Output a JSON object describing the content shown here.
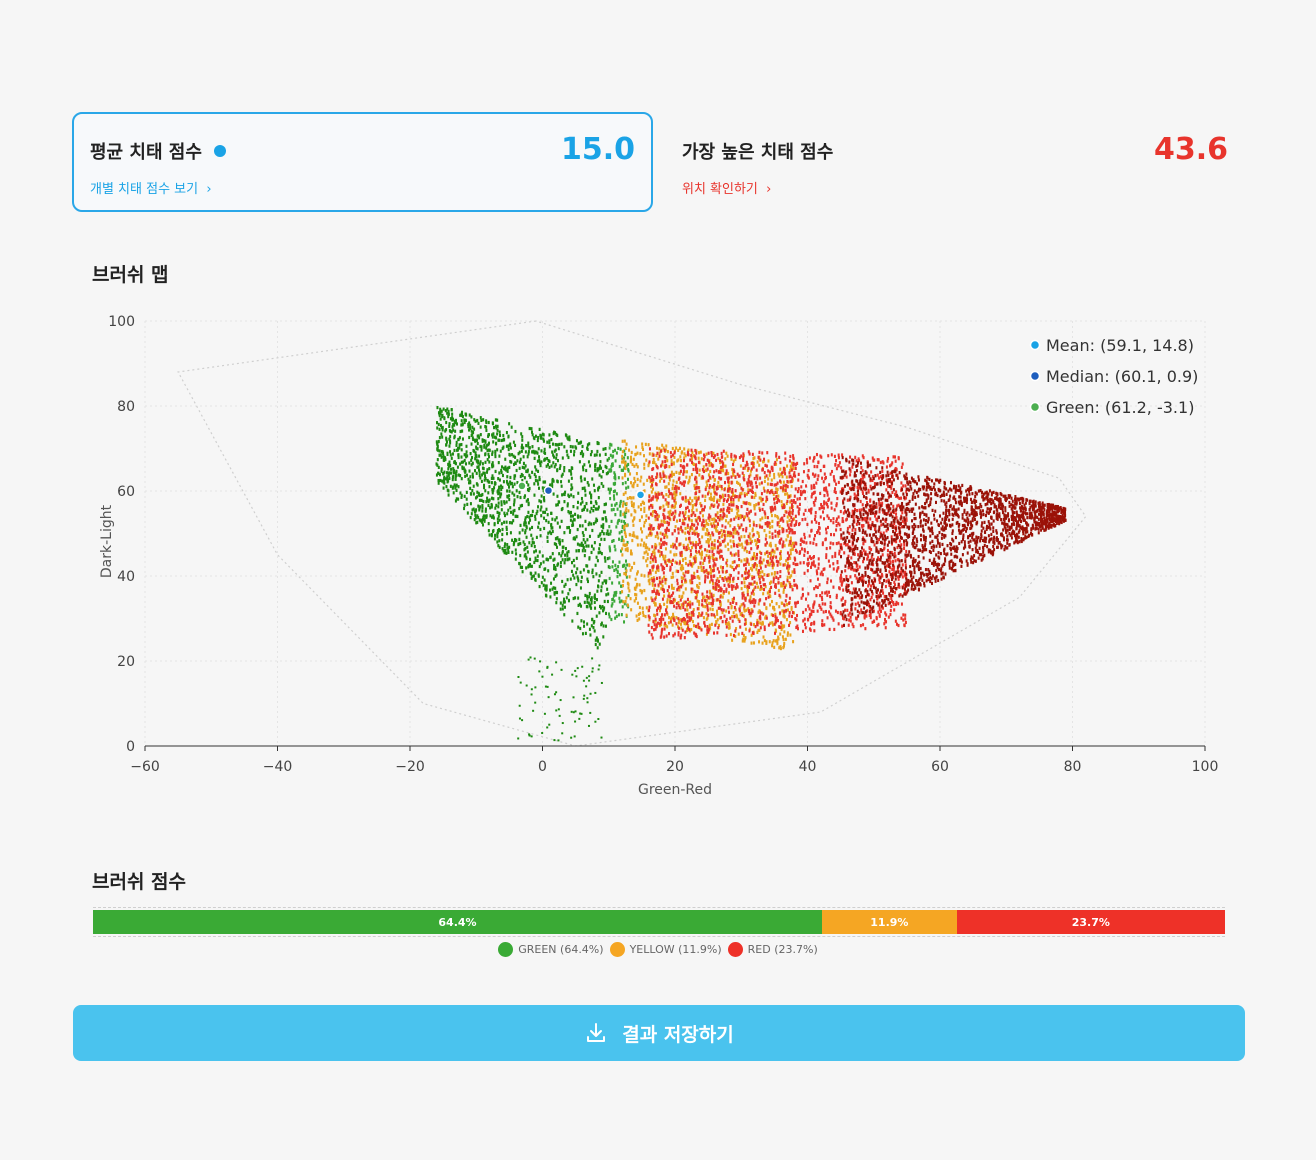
{
  "avg_card": {
    "title": "평균 치태 점수",
    "link": "개별 치태 점수 보기",
    "value": "15.0"
  },
  "max_card": {
    "title": "가장 높은 치태 점수",
    "link": "위치 확인하기",
    "value": "43.6"
  },
  "brush_map": {
    "title": "브러쉬 맵"
  },
  "chart_data": {
    "type": "scatter",
    "xlabel": "Green-Red",
    "ylabel": "Dark-Light",
    "xlim": [
      -60,
      100
    ],
    "ylim": [
      0,
      100
    ],
    "xticks": [
      "−60",
      "−40",
      "−20",
      "0",
      "20",
      "40",
      "60",
      "80",
      "100"
    ],
    "yticks": [
      "0",
      "20",
      "40",
      "60",
      "80",
      "100"
    ],
    "grid": true,
    "legend_position": "top-right",
    "markers": [
      {
        "label": "Mean: (59.1, 14.8)",
        "x": 14.8,
        "y": 59.1,
        "color": "#1aa3e6"
      },
      {
        "label": "Median: (60.1, 0.9)",
        "x": 0.9,
        "y": 60.1,
        "color": "#1f5fbf"
      },
      {
        "label": "Green: (61.2, -3.1)",
        "x": -3.1,
        "y": 61.2,
        "color": "#4caf50"
      }
    ],
    "clusters": [
      {
        "zone": "green",
        "color": "#1e8a12",
        "x_range": [
          -16,
          10
        ],
        "y_top": [
          80,
          71
        ],
        "y_bottom": [
          62,
          20
        ]
      },
      {
        "zone": "green-light",
        "color": "#3aa838",
        "x_range": [
          10,
          13
        ],
        "y_top": [
          72,
          70
        ],
        "y_bottom": [
          30,
          28
        ]
      },
      {
        "zone": "yellow",
        "color": "#e8a21e",
        "x_range": [
          12,
          38
        ],
        "y_top": [
          72,
          67
        ],
        "y_bottom": [
          30,
          22
        ]
      },
      {
        "zone": "red",
        "color": "#e8342c",
        "x_range": [
          16,
          55
        ],
        "y_top": [
          70,
          68
        ],
        "y_bottom": [
          25,
          28
        ]
      },
      {
        "zone": "dark-red",
        "color": "#9b1208",
        "x_range": [
          45,
          79
        ],
        "y_top": [
          68,
          56
        ],
        "y_bottom": [
          28,
          53
        ]
      }
    ]
  },
  "brush_score": {
    "title": "브러쉬 점수",
    "segments": [
      {
        "label": "64.4%",
        "value": 64.4,
        "color": "#3aaa35"
      },
      {
        "label": "11.9%",
        "value": 11.9,
        "color": "#f5a623"
      },
      {
        "label": "23.7%",
        "value": 23.7,
        "color": "#ee3128"
      }
    ],
    "legend": [
      {
        "label": "GREEN (64.4%)",
        "color": "#3aaa35"
      },
      {
        "label": "YELLOW (11.9%)",
        "color": "#f5a623"
      },
      {
        "label": "RED (23.7%)",
        "color": "#ee3128"
      }
    ]
  },
  "save_button": {
    "label": "결과 저장하기"
  }
}
